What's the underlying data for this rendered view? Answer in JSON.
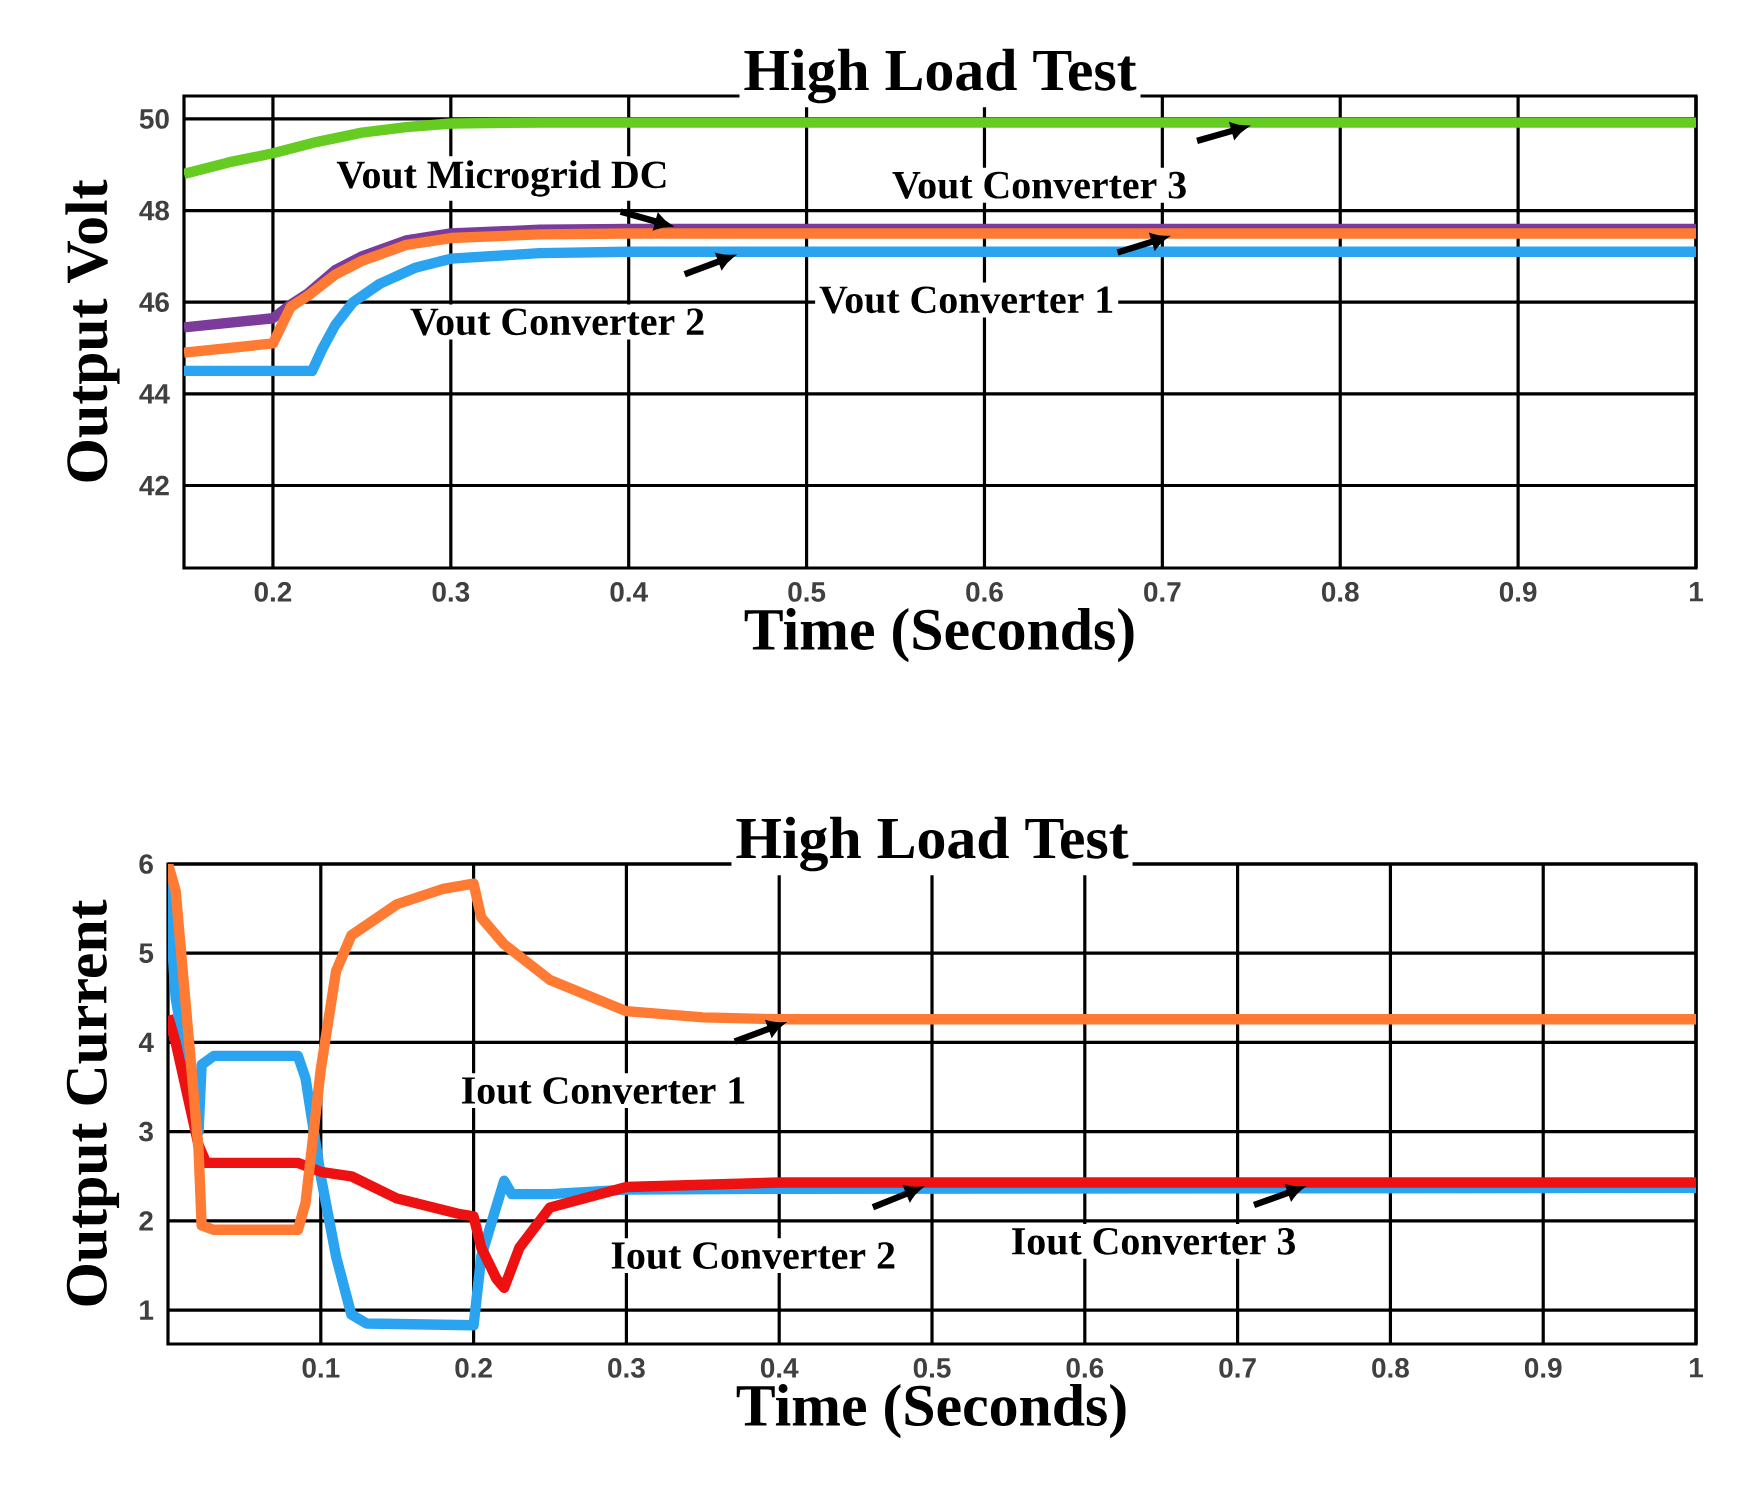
{
  "chart_data": [
    {
      "type": "line",
      "title": "High Load Test",
      "xlabel": "Time (Seconds)",
      "ylabel": "Output Volt",
      "xlim": [
        0.15,
        1.0
      ],
      "ylim": [
        40.2,
        50.5
      ],
      "xticks": [
        0.2,
        0.3,
        0.4,
        0.5,
        0.6,
        0.7,
        0.8,
        0.9,
        1
      ],
      "yticks": [
        42,
        44,
        46,
        48,
        50
      ],
      "grid": true,
      "marker": "none",
      "line_style": "solid",
      "series": [
        {
          "color": "#66cc22",
          "x": [
            0.15,
            0.175,
            0.2,
            0.225,
            0.25,
            0.275,
            0.3,
            0.35,
            0.4,
            1.0
          ],
          "values": [
            48.8,
            49.05,
            49.25,
            49.5,
            49.7,
            49.82,
            49.9,
            49.92,
            49.92,
            49.92
          ]
        },
        {
          "color": "#7a3b9a",
          "x": [
            0.15,
            0.2,
            0.21,
            0.22,
            0.235,
            0.25,
            0.275,
            0.3,
            0.35,
            0.4,
            1.0
          ],
          "values": [
            45.45,
            45.65,
            45.95,
            46.2,
            46.7,
            47.0,
            47.35,
            47.5,
            47.58,
            47.6,
            47.6
          ]
        },
        {
          "color": "#ff7a33",
          "x": [
            0.15,
            0.2,
            0.205,
            0.21,
            0.22,
            0.235,
            0.25,
            0.275,
            0.3,
            0.35,
            0.4,
            1.0
          ],
          "values": [
            44.9,
            45.1,
            45.5,
            45.9,
            46.15,
            46.6,
            46.9,
            47.25,
            47.4,
            47.48,
            47.5,
            47.5
          ]
        },
        {
          "color": "#2aa4f0",
          "x": [
            0.15,
            0.222,
            0.228,
            0.235,
            0.245,
            0.26,
            0.28,
            0.3,
            0.35,
            0.4,
            1.0
          ],
          "values": [
            44.5,
            44.5,
            45.0,
            45.5,
            46.0,
            46.4,
            46.75,
            46.95,
            47.07,
            47.1,
            47.1
          ]
        }
      ],
      "annotations": [
        {
          "text": "Vout Microgrid DC",
          "x": 0.43,
          "y": 47.6
        },
        {
          "text": "Vout Converter 2",
          "x": 0.465,
          "y": 47.1
        },
        {
          "text": "Vout Converter 1",
          "x": 0.709,
          "y": 47.5
        },
        {
          "text": "Vout Converter 3",
          "x": 0.754,
          "y": 49.9
        }
      ]
    },
    {
      "type": "line",
      "title": "High Load Test",
      "xlabel": "Time (Seconds)",
      "ylabel": "Output Current",
      "xlim": [
        0,
        1.0
      ],
      "ylim": [
        0.62,
        6
      ],
      "xticks": [
        0.1,
        0.2,
        0.3,
        0.4,
        0.5,
        0.6,
        0.7,
        0.8,
        0.9,
        1
      ],
      "yticks": [
        1,
        2,
        3,
        4,
        5,
        6
      ],
      "grid": true,
      "marker": "none",
      "line_style": "solid",
      "series": [
        {
          "color": "#2aa4f0",
          "x": [
            0,
            0.005,
            0.02,
            0.022,
            0.03,
            0.085,
            0.09,
            0.1,
            0.11,
            0.12,
            0.13,
            0.2,
            0.205,
            0.22,
            0.225,
            0.25,
            0.3,
            0.4,
            1.0
          ],
          "values": [
            5.8,
            4.5,
            3.0,
            3.75,
            3.85,
            3.85,
            3.6,
            2.5,
            1.6,
            0.95,
            0.85,
            0.83,
            1.6,
            2.45,
            2.3,
            2.3,
            2.35,
            2.36,
            2.37
          ]
        },
        {
          "color": "#ee1111",
          "x": [
            0,
            0.005,
            0.02,
            0.025,
            0.085,
            0.1,
            0.12,
            0.15,
            0.19,
            0.2,
            0.205,
            0.215,
            0.22,
            0.23,
            0.25,
            0.3,
            0.4,
            1.0
          ],
          "values": [
            4.3,
            4.0,
            2.85,
            2.65,
            2.65,
            2.55,
            2.5,
            2.25,
            2.08,
            2.05,
            1.7,
            1.35,
            1.25,
            1.7,
            2.15,
            2.38,
            2.43,
            2.43
          ]
        },
        {
          "color": "#ff7a33",
          "x": [
            0,
            0.005,
            0.02,
            0.022,
            0.03,
            0.085,
            0.09,
            0.1,
            0.11,
            0.12,
            0.15,
            0.18,
            0.2,
            0.205,
            0.22,
            0.25,
            0.3,
            0.35,
            0.4,
            1.0
          ],
          "values": [
            6.0,
            5.7,
            2.8,
            1.95,
            1.9,
            1.9,
            2.2,
            3.7,
            4.8,
            5.2,
            5.55,
            5.72,
            5.78,
            5.4,
            5.1,
            4.7,
            4.35,
            4.28,
            4.26,
            4.26
          ]
        }
      ],
      "annotations": [
        {
          "text": "Iout Converter 1",
          "x": 0.41,
          "y": 4.26
        },
        {
          "text": "Iout Converter 2",
          "x": 0.5,
          "y": 2.42
        },
        {
          "text": "Iout Converter 3",
          "x": 0.75,
          "y": 2.42
        }
      ]
    }
  ]
}
